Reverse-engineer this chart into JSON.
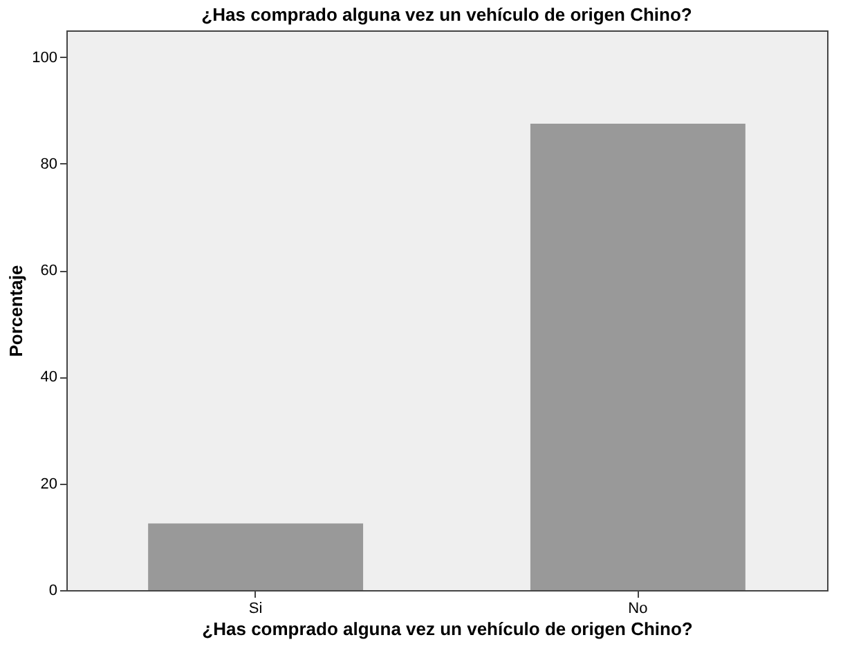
{
  "chart_data": {
    "type": "bar",
    "title": "¿Has comprado alguna vez un vehículo de origen Chino?",
    "xlabel": "¿Has comprado alguna vez un vehículo de origen Chino?",
    "ylabel": "Porcentaje",
    "categories": [
      "Si",
      "No"
    ],
    "values": [
      12.5,
      87.5
    ],
    "color": "#999999",
    "ylim": [
      0,
      105
    ],
    "yticks": [
      0,
      20,
      40,
      60,
      80,
      100
    ],
    "grid": false
  }
}
